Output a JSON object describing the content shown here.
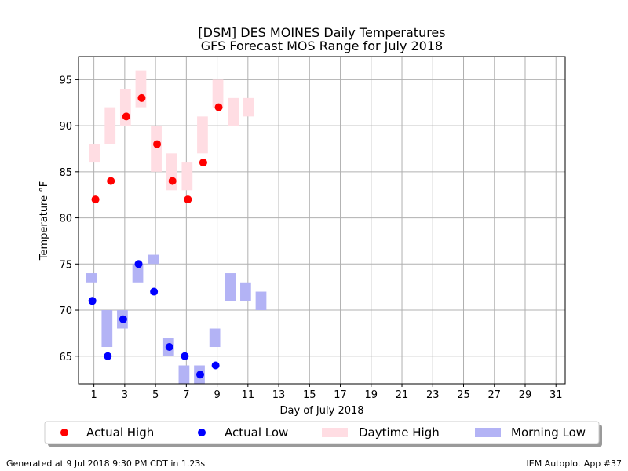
{
  "chart_data": {
    "type": "scatter",
    "title": [
      "[DSM] DES MOINES Daily Temperatures",
      "GFS Forecast MOS Range for July 2018"
    ],
    "xlabel": "Day of July 2018",
    "ylabel": "Temperature °F",
    "xlim": [
      0,
      31.6
    ],
    "ylim": [
      62,
      97.5
    ],
    "xticks": [
      1,
      3,
      5,
      7,
      9,
      11,
      13,
      15,
      17,
      19,
      21,
      23,
      25,
      27,
      29,
      31
    ],
    "yticks": [
      65,
      70,
      75,
      80,
      85,
      90,
      95
    ],
    "grid": true,
    "legend_position": "bottom",
    "colors": {
      "actual_high": "#ff0000",
      "actual_low": "#0000ff",
      "daytime_high": "#ffdde3",
      "morning_low": "#b3b3f5"
    },
    "legend": {
      "actual_high": "Actual High",
      "actual_low": "Actual Low",
      "daytime_high": "Daytime High",
      "morning_low": "Morning Low"
    },
    "actual_high": [
      {
        "day": 1,
        "value": 82
      },
      {
        "day": 2,
        "value": 84
      },
      {
        "day": 3,
        "value": 91
      },
      {
        "day": 4,
        "value": 93
      },
      {
        "day": 5,
        "value": 88
      },
      {
        "day": 6,
        "value": 84
      },
      {
        "day": 7,
        "value": 82
      },
      {
        "day": 8,
        "value": 86
      },
      {
        "day": 9,
        "value": 92
      }
    ],
    "actual_low": [
      {
        "day": 1,
        "value": 71
      },
      {
        "day": 2,
        "value": 65
      },
      {
        "day": 3,
        "value": 69
      },
      {
        "day": 4,
        "value": 75
      },
      {
        "day": 5,
        "value": 72
      },
      {
        "day": 6,
        "value": 66
      },
      {
        "day": 7,
        "value": 65
      },
      {
        "day": 8,
        "value": 63
      },
      {
        "day": 9,
        "value": 64
      }
    ],
    "daytime_high_range": [
      {
        "day": 1,
        "min": 86,
        "max": 88
      },
      {
        "day": 2,
        "min": 88,
        "max": 92
      },
      {
        "day": 3,
        "min": 90,
        "max": 94
      },
      {
        "day": 4,
        "min": 92,
        "max": 96
      },
      {
        "day": 5,
        "min": 85,
        "max": 90
      },
      {
        "day": 6,
        "min": 83,
        "max": 87
      },
      {
        "day": 7,
        "min": 83,
        "max": 86
      },
      {
        "day": 8,
        "min": 87,
        "max": 91
      },
      {
        "day": 9,
        "min": 92,
        "max": 95
      },
      {
        "day": 10,
        "min": 90,
        "max": 93
      },
      {
        "day": 11,
        "min": 91,
        "max": 93
      }
    ],
    "morning_low_range": [
      {
        "day": 1,
        "min": 73,
        "max": 74
      },
      {
        "day": 2,
        "min": 66,
        "max": 70
      },
      {
        "day": 3,
        "min": 68,
        "max": 70
      },
      {
        "day": 4,
        "min": 73,
        "max": 75
      },
      {
        "day": 5,
        "min": 75,
        "max": 76
      },
      {
        "day": 6,
        "min": 65,
        "max": 67
      },
      {
        "day": 7,
        "min": 62,
        "max": 64
      },
      {
        "day": 8,
        "min": 62,
        "max": 64
      },
      {
        "day": 9,
        "min": 66,
        "max": 68
      },
      {
        "day": 10,
        "min": 71,
        "max": 74
      },
      {
        "day": 11,
        "min": 71,
        "max": 73
      },
      {
        "day": 12,
        "min": 70,
        "max": 72
      }
    ]
  },
  "footer": {
    "left": "Generated at 9 Jul 2018 9:30 PM CDT in 1.23s",
    "right": "IEM Autoplot App #37"
  }
}
